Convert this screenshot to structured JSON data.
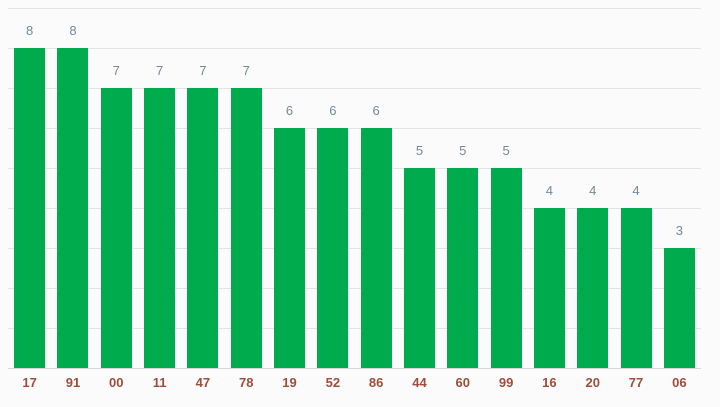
{
  "colors": {
    "background": "#fbfbfb",
    "bar": "#00ab4e",
    "gridline": "#e4e4e4",
    "baseline": "#d8d8d8",
    "value_label": "#75889c",
    "axis_label": "#9e4e3a"
  },
  "chart_data": {
    "type": "bar",
    "categories": [
      "17",
      "91",
      "00",
      "11",
      "47",
      "78",
      "19",
      "52",
      "86",
      "44",
      "60",
      "99",
      "16",
      "20",
      "77",
      "06"
    ],
    "values": [
      8,
      8,
      7,
      7,
      7,
      7,
      6,
      6,
      6,
      5,
      5,
      5,
      4,
      4,
      4,
      3
    ],
    "title": "",
    "xlabel": "",
    "ylabel": "",
    "ylim": [
      0,
      9
    ],
    "grid": "horizontal gridlines every 1 unit",
    "legend": "none",
    "annotations": "value displayed above each bar, category label below each bar"
  }
}
